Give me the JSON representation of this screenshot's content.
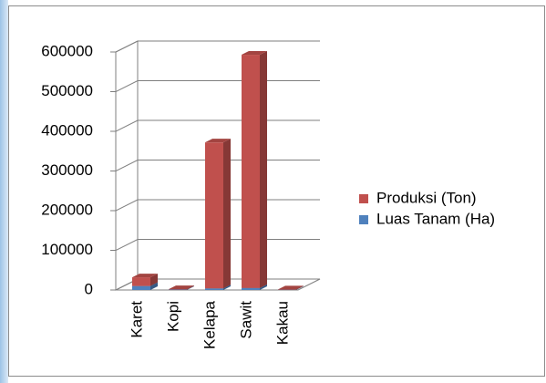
{
  "chart_data": {
    "type": "bar3d_stacked",
    "categories": [
      "Karet",
      "Kopi",
      "Kelapa",
      "Sawit",
      "Kakau"
    ],
    "series": [
      {
        "name": "Luas Tanam (Ha)",
        "color": "#4f81bd",
        "values": [
          10000,
          1000,
          4000,
          5000,
          500
        ]
      },
      {
        "name": "Produksi (Ton)",
        "color": "#c0504d",
        "values": [
          22000,
          1000,
          368000,
          588000,
          1000
        ]
      }
    ],
    "ylim": [
      0,
      600000
    ],
    "yticks": [
      0,
      100000,
      200000,
      300000,
      400000,
      500000,
      600000
    ],
    "grid": true,
    "legend": "right"
  }
}
